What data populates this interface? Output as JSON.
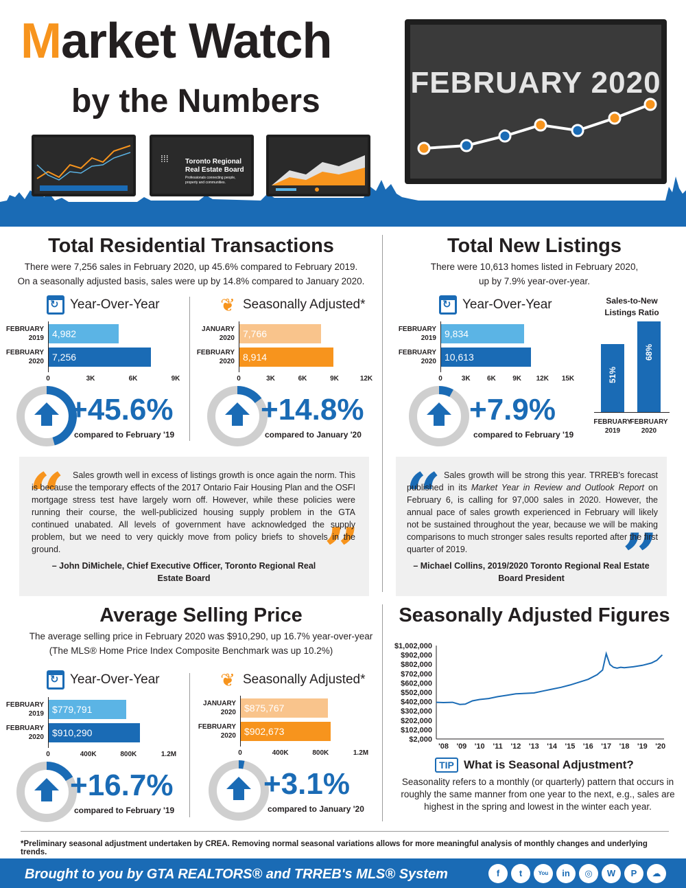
{
  "header": {
    "title_m": "M",
    "title_rest": "arket Watch",
    "subtitle": "by the Numbers",
    "month": "FEBRUARY 2020",
    "trreb_logo_line1": "Toronto Regional",
    "trreb_logo_line2": "Real Estate Board",
    "trreb_tagline": "Professionals connecting people, property and communities."
  },
  "transactions": {
    "title": "Total Residential Transactions",
    "text_line1": "There were 7,256 sales in February 2020, up 45.6% compared to February 2019.",
    "text_line2": "On a seasonally adjusted basis, sales were up by 14.8% compared to January 2020.",
    "yoy": {
      "heading": "Year-Over-Year",
      "rows": [
        {
          "label1": "FEBRUARY",
          "label2": "2019",
          "value_label": "4,982",
          "value": 4982
        },
        {
          "label1": "FEBRUARY",
          "label2": "2020",
          "value_label": "7,256",
          "value": 7256
        }
      ],
      "ticks": [
        "0",
        "3K",
        "6K",
        "9K"
      ],
      "max": 9000,
      "pct": "+45.6%",
      "caption": "compared to February '19",
      "donut_fraction": 0.456
    },
    "sa": {
      "heading": "Seasonally Adjusted*",
      "rows": [
        {
          "label1": "JANUARY",
          "label2": "2020",
          "value_label": "7,766",
          "value": 7766
        },
        {
          "label1": "FEBRUARY",
          "label2": "2020",
          "value_label": "8,914",
          "value": 8914
        }
      ],
      "ticks": [
        "0",
        "3K",
        "6K",
        "9K",
        "12K"
      ],
      "max": 12000,
      "pct": "+14.8%",
      "caption": "compared to January '20",
      "donut_fraction": 0.148
    },
    "quote": "Sales growth well in excess of listings growth is once again the norm. This is because the temporary effects of the 2017 Ontario Fair Housing Plan and the OSFI mortgage stress test have largely worn off. However, while these policies were running their course, the well-publicized housing supply problem in the GTA continued unabated. All levels of government have acknowledged the supply problem, but we need to very quickly move from policy briefs to shovels in the ground.",
    "attribution": "– John DiMichele, Chief Executive Officer, Toronto Regional Real Estate Board"
  },
  "listings": {
    "title": "Total New Listings",
    "text_line1": "There were 10,613 homes listed in February 2020,",
    "text_line2": "up by 7.9% year-over-year.",
    "yoy": {
      "heading": "Year-Over-Year",
      "rows": [
        {
          "label1": "FEBRUARY",
          "label2": "2019",
          "value_label": "9,834",
          "value": 9834
        },
        {
          "label1": "FEBRUARY",
          "label2": "2020",
          "value_label": "10,613",
          "value": 10613
        }
      ],
      "ticks": [
        "0",
        "3K",
        "6K",
        "9K",
        "12K",
        "15K"
      ],
      "max": 15000,
      "pct": "+7.9%",
      "caption": "compared to February '19",
      "donut_fraction": 0.079
    },
    "ratio": {
      "title_line1": "Sales-to-New",
      "title_line2": "Listings Ratio",
      "bars": [
        {
          "label1": "FEBRUARY",
          "label2": "2019",
          "value_label": "51%",
          "value": 51
        },
        {
          "label1": "FEBRUARY",
          "label2": "2020",
          "value_label": "68%",
          "value": 68
        }
      ]
    },
    "quote_part1": "Sales growth will be strong this year. TRREB's forecast published in its ",
    "quote_italic": "Market Year in Review and Outlook Report",
    "quote_part2": " on February 6, is calling for 97,000 sales in 2020. However, the annual pace of sales growth experienced in February will likely not be sustained throughout the year, because we will be making comparisons to much stronger sales results reported after the first quarter of 2019.",
    "attribution": "– Michael Collins, 2019/2020 Toronto Regional Real Estate Board President"
  },
  "price": {
    "title": "Average Selling Price",
    "text_line1": "The average selling price in February 2020 was $910,290, up 16.7% year-over-year",
    "text_line2": "(The MLS® Home Price Index Composite Benchmark was up 10.2%)",
    "yoy": {
      "heading": "Year-Over-Year",
      "rows": [
        {
          "label1": "FEBRUARY",
          "label2": "2019",
          "value_label": "$779,791",
          "value": 779791
        },
        {
          "label1": "FEBRUARY",
          "label2": "2020",
          "value_label": "$910,290",
          "value": 910290
        }
      ],
      "ticks": [
        "0",
        "400K",
        "800K",
        "1.2M"
      ],
      "max": 1200000,
      "pct": "+16.7%",
      "caption": "compared to February '19",
      "donut_fraction": 0.167
    },
    "sa": {
      "heading": "Seasonally Adjusted*",
      "rows": [
        {
          "label1": "JANUARY",
          "label2": "2020",
          "value_label": "$875,767",
          "value": 875767
        },
        {
          "label1": "FEBRUARY",
          "label2": "2020",
          "value_label": "$902,673",
          "value": 902673
        }
      ],
      "ticks": [
        "0",
        "400K",
        "800K",
        "1.2M"
      ],
      "max": 1200000,
      "pct": "+3.1%",
      "caption": "compared to January '20",
      "donut_fraction": 0.031
    }
  },
  "sa_figures": {
    "title": "Seasonally Adjusted Figures",
    "tip_badge": "TIP",
    "tip_title": "What is Seasonal Adjustment?",
    "tip_text": "Seasonality refers to a monthly (or quarterly) pattern that occurs in roughly the same manner from one year to the next, e.g., sales are highest in the spring and lowest in the winter each year."
  },
  "chart_data": {
    "type": "line",
    "title": "",
    "xlabel": "",
    "ylabel": "",
    "y_ticks": [
      "$1,002,000",
      "$902,000",
      "$802,000",
      "$702,000",
      "$602,000",
      "$502,000",
      "$402,000",
      "$302,000",
      "$202,000",
      "$102,000",
      "$2,000"
    ],
    "x_ticks": [
      "'08",
      "'09",
      "'10",
      "'11",
      "'12",
      "'13",
      "'14",
      "'15",
      "'16",
      "'17",
      "'18",
      "'19",
      "'20"
    ],
    "ylim": [
      2000,
      1002000
    ],
    "xlim": [
      2007.6,
      2020.2
    ],
    "series": [
      {
        "x": [
          2007.6,
          2008.0,
          2008.5,
          2008.9,
          2009.2,
          2009.6,
          2010.0,
          2010.5,
          2011.0,
          2011.5,
          2012.0,
          2012.5,
          2013.0,
          2013.5,
          2014.0,
          2014.5,
          2015.0,
          2015.5,
          2016.0,
          2016.5,
          2016.8,
          2017.0,
          2017.2,
          2017.4,
          2017.6,
          2017.8,
          2018.0,
          2018.5,
          2019.0,
          2019.5,
          2019.8,
          2020.1
        ],
        "y": [
          395000,
          392000,
          395000,
          372000,
          375000,
          410000,
          425000,
          435000,
          455000,
          470000,
          485000,
          490000,
          495000,
          515000,
          535000,
          555000,
          580000,
          610000,
          640000,
          690000,
          740000,
          915000,
          800000,
          770000,
          760000,
          770000,
          765000,
          775000,
          790000,
          815000,
          845000,
          902000
        ]
      }
    ]
  },
  "footnote": "*Preliminary seasonal adjustment undertaken by CREA. Removing normal seasonal variations allows for more meaningful analysis of monthly changes and underlying trends.",
  "footer": {
    "text": "Brought to you by GTA REALTORS® and TRREB's MLS® System",
    "social": [
      {
        "name": "facebook-icon",
        "glyph": "f"
      },
      {
        "name": "twitter-icon",
        "glyph": "t"
      },
      {
        "name": "youtube-icon",
        "glyph": "You"
      },
      {
        "name": "linkedin-icon",
        "glyph": "in"
      },
      {
        "name": "instagram-icon",
        "glyph": "◎"
      },
      {
        "name": "wordpress-icon",
        "glyph": "W"
      },
      {
        "name": "pinterest-icon",
        "glyph": "P"
      },
      {
        "name": "soundcloud-icon",
        "glyph": "☁"
      }
    ]
  },
  "colors": {
    "blue": "#1a6bb5",
    "light_blue": "#5bb4e5",
    "orange": "#f7941d",
    "light_orange": "#f9c48c",
    "gray_ring": "#cfcfcf",
    "quote_bg": "#f0f0f0"
  }
}
